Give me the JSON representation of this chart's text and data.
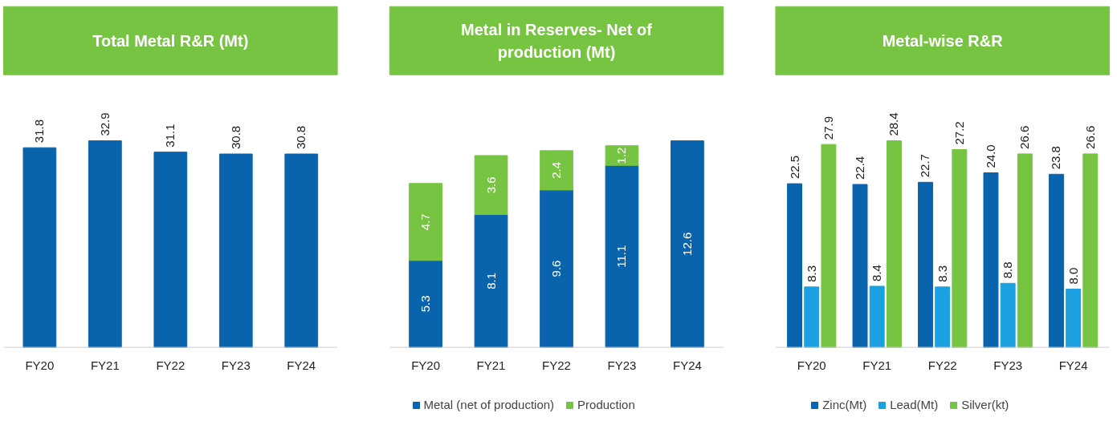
{
  "chart_data": [
    {
      "type": "bar",
      "title": "Total Metal R&R (Mt)",
      "categories": [
        "FY20",
        "FY21",
        "FY22",
        "FY23",
        "FY24"
      ],
      "series": [
        {
          "color": "#0a64ad",
          "values": [
            31.8,
            32.9,
            31.1,
            30.8,
            30.8
          ]
        }
      ],
      "data_labels": true,
      "tick_labels": "x"
    },
    {
      "type": "bar",
      "title": "Metal in Reserves- Net of production (Mt)",
      "categories": [
        "FY20",
        "FY21",
        "FY22",
        "FY23",
        "FY24"
      ],
      "stacked": true,
      "series": [
        {
          "name": "Metal (net of production)",
          "color": "#0a64ad",
          "values": [
            5.3,
            8.1,
            9.6,
            11.1,
            12.6
          ]
        },
        {
          "name": "Production",
          "color": "#76c442",
          "values": [
            4.7,
            3.6,
            2.4,
            1.2,
            null
          ]
        }
      ],
      "data_labels": true,
      "legend": "bottom",
      "tick_labels": "x"
    },
    {
      "type": "bar",
      "title": "Metal-wise R&R",
      "categories": [
        "FY20",
        "FY21",
        "FY22",
        "FY23",
        "FY24"
      ],
      "series": [
        {
          "name": "Zinc(Mt)",
          "color": "#0a64ad",
          "values": [
            22.5,
            22.4,
            22.7,
            24.0,
            23.8
          ],
          "value_labels": [
            "22.5",
            "22.4",
            "22.7",
            "24.0",
            "23.8"
          ]
        },
        {
          "name": "Lead(Mt)",
          "color": "#1ba1e2",
          "values": [
            8.3,
            8.4,
            8.3,
            8.8,
            8.0
          ],
          "value_labels": [
            "8.3",
            "8.4",
            "8.3",
            "8.8",
            "8.0"
          ]
        },
        {
          "name": "Silver(kt)",
          "color": "#76c442",
          "values": [
            27.9,
            28.4,
            27.2,
            26.6,
            26.6
          ]
        }
      ],
      "data_labels": true,
      "legend": "bottom",
      "tick_labels": "x"
    }
  ]
}
